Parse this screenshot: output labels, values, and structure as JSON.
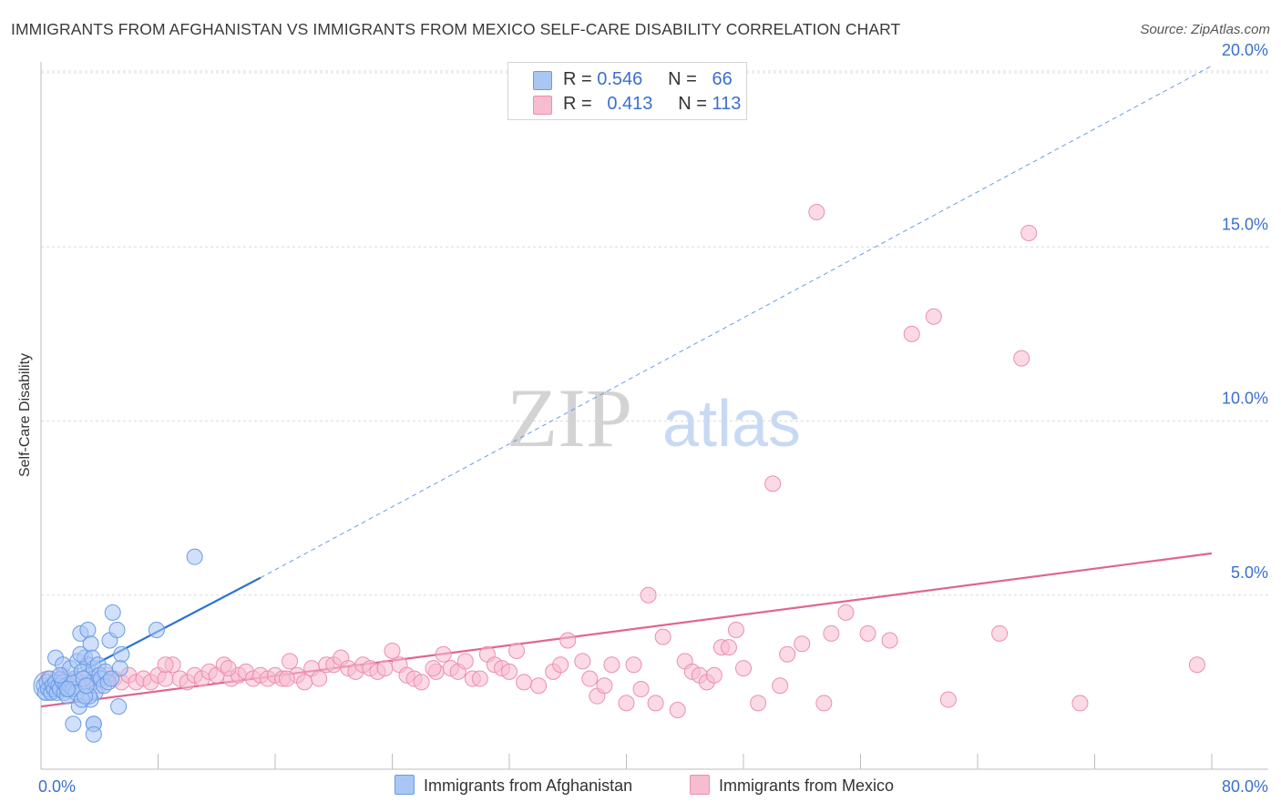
{
  "title": "IMMIGRANTS FROM AFGHANISTAN VS IMMIGRANTS FROM MEXICO SELF-CARE DISABILITY CORRELATION CHART",
  "source": "Source: ZipAtlas.com",
  "watermark": {
    "zip": "ZIP",
    "atlas": "atlas"
  },
  "colors": {
    "afghanistan_fill": "#a9c6f5",
    "afghanistan_stroke": "#6a9be6",
    "afghanistan_line": "#2f72d0",
    "mexico_fill": "#f7bcd0",
    "mexico_stroke": "#ec8fae",
    "mexico_line": "#e0668f",
    "tick_label": "#3a6fd0",
    "grid": "#dcdcdc"
  },
  "legend": {
    "rows": [
      {
        "r_label": "R =",
        "r_value": "0.546",
        "n_label": "N =",
        "n_value": "66"
      },
      {
        "r_label": "R =",
        "r_value": "0.413",
        "n_label": "N =",
        "n_value": "113"
      }
    ]
  },
  "bottom_legend": {
    "afghanistan": "Immigrants from Afghanistan",
    "mexico": "Immigrants from Mexico"
  },
  "chart_data": {
    "type": "scatter",
    "title": "IMMIGRANTS FROM AFGHANISTAN VS IMMIGRANTS FROM MEXICO SELF-CARE DISABILITY CORRELATION CHART",
    "xlabel": "",
    "ylabel": "Self-Care Disability",
    "xlim": [
      0,
      80
    ],
    "ylim": [
      0,
      21
    ],
    "x_tick_labels": [
      "0.0%",
      "80.0%"
    ],
    "y_ticks": [
      5,
      10,
      15,
      20
    ],
    "y_tick_labels": [
      "5.0%",
      "10.0%",
      "15.0%",
      "20.0%"
    ],
    "grid": "horizontal dashed",
    "legend_position": "top-center",
    "series": [
      {
        "name": "Immigrants from Afghanistan",
        "r": 0.546,
        "n": 66,
        "trend": {
          "x": [
            0,
            15
          ],
          "y": [
            2.2,
            5.5
          ],
          "extended_to": [
            80,
            20.2
          ]
        },
        "points": [
          [
            0.2,
            2.4
          ],
          [
            0.3,
            2.2
          ],
          [
            0.4,
            2.5
          ],
          [
            0.5,
            2.3
          ],
          [
            0.6,
            2.6
          ],
          [
            0.7,
            2.2
          ],
          [
            0.8,
            2.4
          ],
          [
            0.9,
            2.3
          ],
          [
            1.0,
            2.5
          ],
          [
            1.1,
            2.2
          ],
          [
            1.2,
            2.4
          ],
          [
            1.3,
            2.3
          ],
          [
            1.4,
            2.6
          ],
          [
            1.5,
            2.5
          ],
          [
            1.6,
            2.2
          ],
          [
            1.7,
            2.4
          ],
          [
            1.8,
            2.1
          ],
          [
            1.9,
            2.3
          ],
          [
            2.0,
            2.4
          ],
          [
            2.1,
            2.5
          ],
          [
            2.2,
            2.3
          ],
          [
            2.3,
            2.6
          ],
          [
            2.4,
            2.2
          ],
          [
            1.0,
            3.2
          ],
          [
            1.5,
            3.0
          ],
          [
            2.0,
            2.9
          ],
          [
            2.5,
            3.1
          ],
          [
            3.0,
            3.2
          ],
          [
            3.2,
            3.0
          ],
          [
            2.8,
            2.8
          ],
          [
            2.7,
            3.3
          ],
          [
            3.5,
            2.5
          ],
          [
            3.6,
            2.9
          ],
          [
            3.7,
            2.2
          ],
          [
            3.4,
            2.0
          ],
          [
            3.3,
            2.1
          ],
          [
            2.6,
            1.8
          ],
          [
            2.2,
            1.3
          ],
          [
            2.8,
            2.0
          ],
          [
            3.0,
            2.1
          ],
          [
            2.7,
            3.9
          ],
          [
            3.2,
            4.0
          ],
          [
            3.4,
            3.6
          ],
          [
            3.5,
            3.2
          ],
          [
            3.9,
            3.0
          ],
          [
            4.0,
            2.7
          ],
          [
            4.1,
            2.6
          ],
          [
            4.3,
            2.4
          ],
          [
            4.4,
            2.8
          ],
          [
            4.6,
            2.5
          ],
          [
            4.7,
            3.7
          ],
          [
            4.9,
            4.5
          ],
          [
            5.2,
            4.0
          ],
          [
            5.5,
            3.3
          ],
          [
            5.4,
            2.9
          ],
          [
            4.8,
            2.6
          ],
          [
            3.6,
            1.3
          ],
          [
            3.6,
            1.3
          ],
          [
            3.6,
            1.0
          ],
          [
            5.3,
            1.8
          ],
          [
            7.9,
            4.0
          ],
          [
            10.5,
            6.1
          ],
          [
            1.8,
            2.3
          ],
          [
            2.9,
            2.6
          ],
          [
            3.1,
            2.4
          ],
          [
            1.3,
            2.7
          ]
        ]
      },
      {
        "name": "Immigrants from Mexico",
        "r": 0.413,
        "n": 113,
        "trend": {
          "x": [
            0,
            80
          ],
          "y": [
            1.8,
            6.2
          ]
        },
        "points": [
          [
            0.5,
            2.6
          ],
          [
            1.0,
            2.4
          ],
          [
            1.5,
            2.7
          ],
          [
            2.0,
            2.5
          ],
          [
            2.5,
            2.6
          ],
          [
            3.0,
            2.5
          ],
          [
            3.5,
            2.6
          ],
          [
            4.0,
            2.4
          ],
          [
            4.5,
            2.7
          ],
          [
            5.0,
            2.6
          ],
          [
            5.5,
            2.5
          ],
          [
            6.0,
            2.7
          ],
          [
            6.5,
            2.5
          ],
          [
            7.0,
            2.6
          ],
          [
            7.5,
            2.5
          ],
          [
            8.0,
            2.7
          ],
          [
            8.5,
            2.6
          ],
          [
            9.0,
            3.0
          ],
          [
            9.5,
            2.6
          ],
          [
            10.0,
            2.5
          ],
          [
            10.5,
            2.7
          ],
          [
            11.0,
            2.6
          ],
          [
            11.5,
            2.8
          ],
          [
            12.0,
            2.7
          ],
          [
            12.5,
            3.0
          ],
          [
            13.0,
            2.6
          ],
          [
            13.5,
            2.7
          ],
          [
            14.0,
            2.8
          ],
          [
            14.5,
            2.6
          ],
          [
            15.0,
            2.7
          ],
          [
            15.5,
            2.6
          ],
          [
            16.0,
            2.7
          ],
          [
            16.5,
            2.6
          ],
          [
            17.0,
            3.1
          ],
          [
            17.5,
            2.7
          ],
          [
            18.0,
            2.5
          ],
          [
            18.5,
            2.9
          ],
          [
            19.0,
            2.6
          ],
          [
            19.5,
            3.0
          ],
          [
            20.0,
            3.0
          ],
          [
            20.5,
            3.2
          ],
          [
            21.0,
            2.9
          ],
          [
            21.5,
            2.8
          ],
          [
            22.0,
            3.0
          ],
          [
            22.5,
            2.9
          ],
          [
            23.0,
            2.8
          ],
          [
            23.5,
            2.9
          ],
          [
            24.0,
            3.4
          ],
          [
            24.5,
            3.0
          ],
          [
            25.0,
            2.7
          ],
          [
            25.5,
            2.6
          ],
          [
            26.0,
            2.5
          ],
          [
            27.0,
            2.8
          ],
          [
            27.5,
            3.3
          ],
          [
            28.0,
            2.9
          ],
          [
            28.5,
            2.8
          ],
          [
            29.0,
            3.1
          ],
          [
            29.5,
            2.6
          ],
          [
            30.0,
            2.6
          ],
          [
            30.5,
            3.3
          ],
          [
            31.0,
            3.0
          ],
          [
            31.5,
            2.9
          ],
          [
            32.0,
            2.8
          ],
          [
            32.5,
            3.4
          ],
          [
            33.0,
            2.5
          ],
          [
            34.0,
            2.4
          ],
          [
            35.0,
            2.8
          ],
          [
            35.5,
            3.0
          ],
          [
            36.0,
            3.7
          ],
          [
            37.0,
            3.1
          ],
          [
            37.5,
            2.6
          ],
          [
            38.0,
            2.1
          ],
          [
            38.5,
            2.4
          ],
          [
            39.0,
            3.0
          ],
          [
            40.0,
            1.9
          ],
          [
            40.5,
            3.0
          ],
          [
            41.0,
            2.3
          ],
          [
            41.5,
            5.0
          ],
          [
            42.0,
            1.9
          ],
          [
            42.5,
            3.8
          ],
          [
            43.5,
            1.7
          ],
          [
            44.0,
            3.1
          ],
          [
            44.5,
            2.8
          ],
          [
            45.0,
            2.7
          ],
          [
            45.5,
            2.5
          ],
          [
            46.0,
            2.7
          ],
          [
            46.5,
            3.5
          ],
          [
            47.0,
            3.5
          ],
          [
            47.5,
            4.0
          ],
          [
            48.0,
            2.9
          ],
          [
            49.0,
            1.9
          ],
          [
            50.0,
            8.2
          ],
          [
            50.5,
            2.4
          ],
          [
            51.0,
            3.3
          ],
          [
            52.0,
            3.6
          ],
          [
            53.0,
            16.0
          ],
          [
            53.5,
            1.9
          ],
          [
            54.0,
            3.9
          ],
          [
            55.0,
            4.5
          ],
          [
            56.5,
            3.9
          ],
          [
            58.0,
            3.7
          ],
          [
            59.5,
            12.5
          ],
          [
            61.0,
            13.0
          ],
          [
            62.0,
            2.0
          ],
          [
            65.5,
            3.9
          ],
          [
            67.0,
            11.8
          ],
          [
            67.5,
            15.4
          ],
          [
            71.0,
            1.9
          ],
          [
            79.0,
            3.0
          ],
          [
            8.5,
            3.0
          ],
          [
            12.8,
            2.9
          ],
          [
            16.8,
            2.6
          ],
          [
            26.8,
            2.9
          ]
        ]
      }
    ]
  }
}
